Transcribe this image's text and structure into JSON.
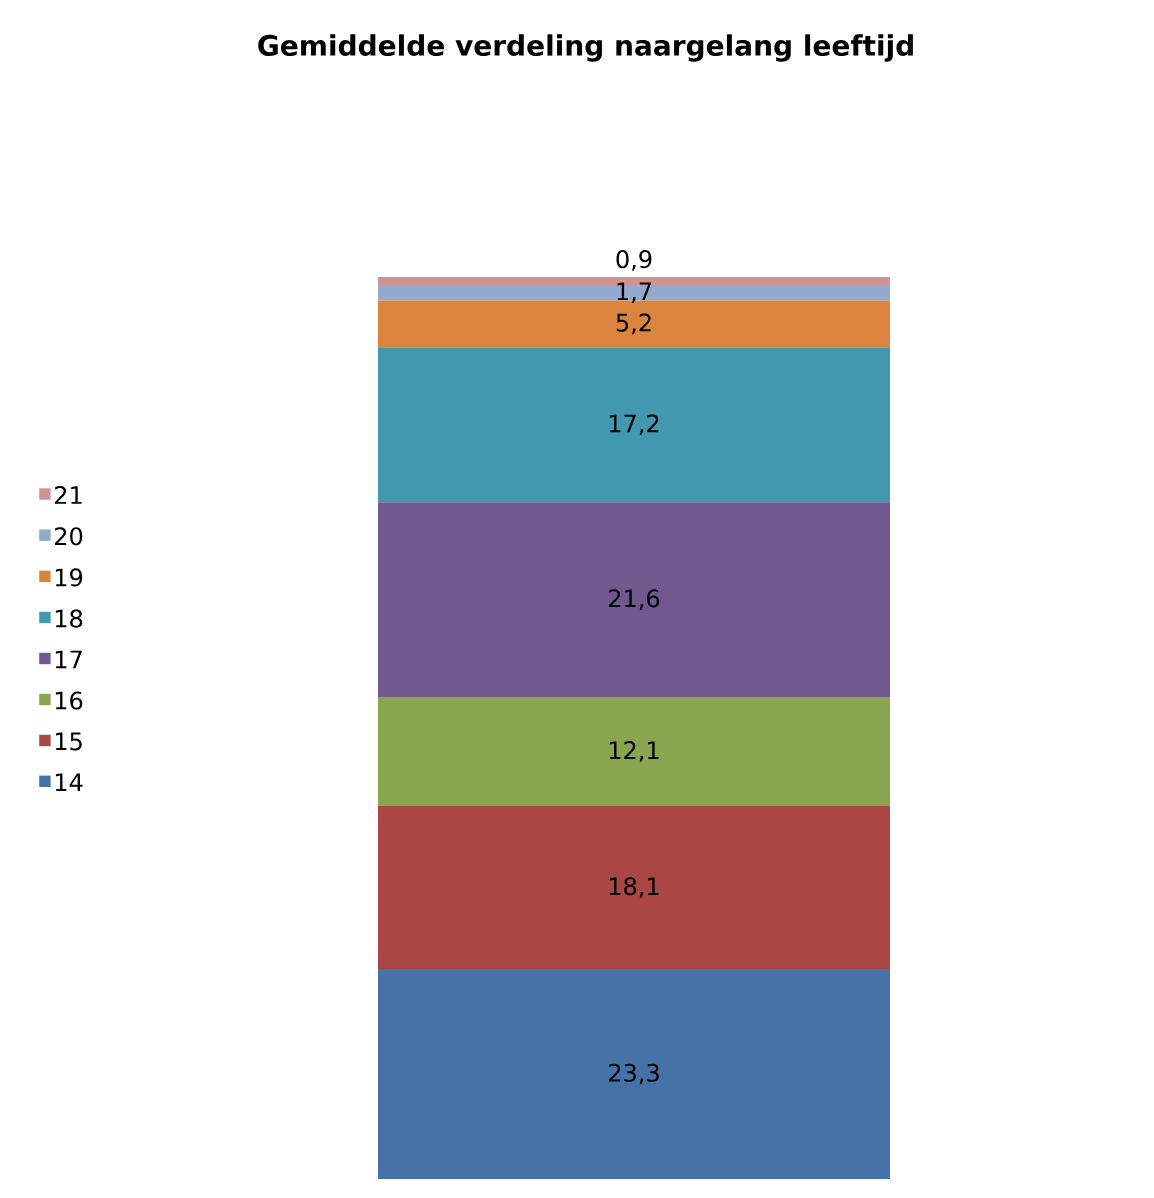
{
  "chart_data": {
    "type": "bar",
    "stacked": true,
    "title": "Gemiddelde verdeling naargelang leeftijd",
    "categories": [
      null
    ],
    "legend": "left",
    "series": [
      {
        "name": "14",
        "color": "#4572a7",
        "values": [
          23.3
        ],
        "value_labels": [
          "23,3"
        ]
      },
      {
        "name": "15",
        "color": "#aa4643",
        "values": [
          18.1
        ],
        "value_labels": [
          "18,1"
        ]
      },
      {
        "name": "16",
        "color": "#89a54e",
        "values": [
          12.1
        ],
        "value_labels": [
          "12,1"
        ]
      },
      {
        "name": "17",
        "color": "#71588f",
        "values": [
          21.6
        ],
        "value_labels": [
          "21,6"
        ]
      },
      {
        "name": "18",
        "color": "#4198af",
        "values": [
          17.2
        ],
        "value_labels": [
          "17,2"
        ]
      },
      {
        "name": "19",
        "color": "#db843d",
        "values": [
          5.2
        ],
        "value_labels": [
          "5,2"
        ]
      },
      {
        "name": "20",
        "color": "#93a9cf",
        "values": [
          1.7
        ],
        "value_labels": [
          "1,7"
        ]
      },
      {
        "name": "21",
        "color": "#d19392",
        "values": [
          0.9
        ],
        "value_labels": [
          "0,9"
        ]
      }
    ]
  }
}
